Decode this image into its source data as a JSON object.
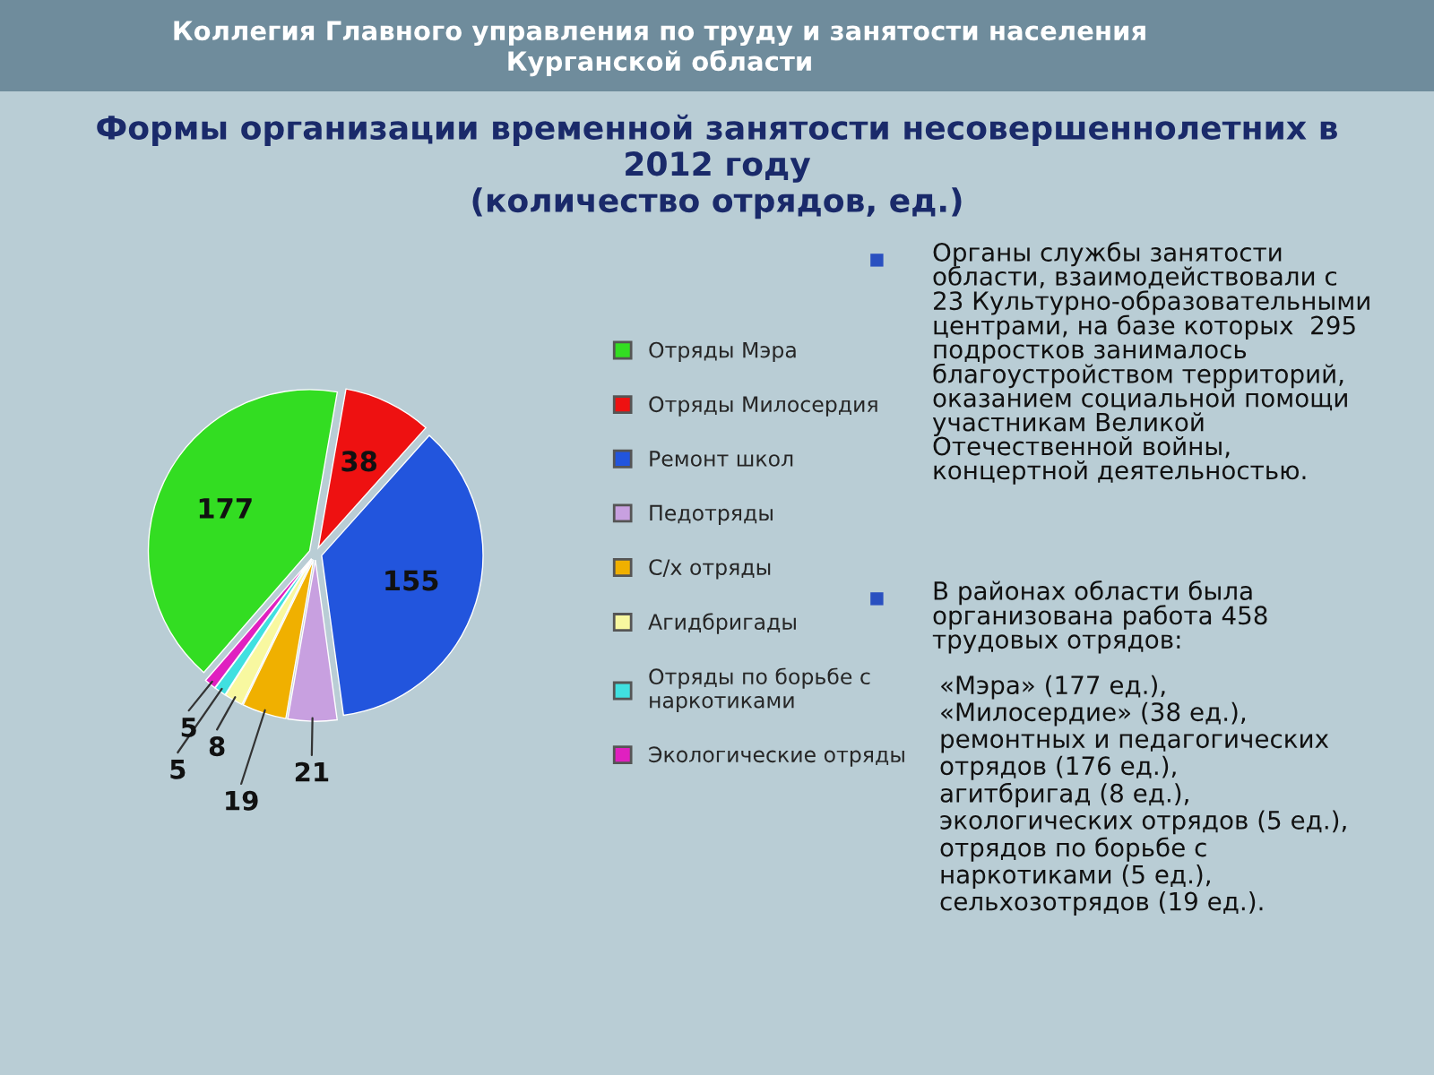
{
  "chart_data": {
    "type": "pie",
    "title": "Формы организации временной занятости несовершеннолетних в\n2012 году\n(количество отрядов, ед.)",
    "categories": [
      "Отряды Мэра",
      "Отряды Милосердия",
      "Ремонт школ",
      "Педотряды",
      "С/х отряды",
      "Агидбригады",
      "Отряды по борьбе с\nнаркотиками",
      "Экологические отряды"
    ],
    "values": [
      177,
      38,
      155,
      21,
      19,
      8,
      5,
      5
    ],
    "colors": [
      "#33dd22",
      "#ee1111",
      "#2255dd",
      "#c8a0e0",
      "#f0b000",
      "#f8f8a0",
      "#40e0e0",
      "#e020c0"
    ],
    "data_labels": true,
    "legend": "right",
    "annotations": [
      "Коллегия Главного управления по труду и занятости населения\nКурганской области",
      "Органы службы занятости\nобласти, взаимодействовали с\n23 Культурно-образовательными\nцентрами, на базе которых  295\nподростков занималось\nблагоустройством территорий,\nоказанием социальной помощи\nучастникам Великой\nОтечественной войны,\nконцертной деятельностью.",
      "В районах области была\nорганизована работа 458\nтрудовых отрядов:",
      "«Мэра» (177 ед.),\n«Милосердие» (38 ед.),\nремонтных и педагогических\nотрядов (176 ед.),\nагитбригад (8 ед.),\nэкологических отрядов (5 ед.),\nотрядов по борьбе с\nнаркотиками (5 ед.),\nсельхозотрядов (19 ед.)."
    ]
  }
}
